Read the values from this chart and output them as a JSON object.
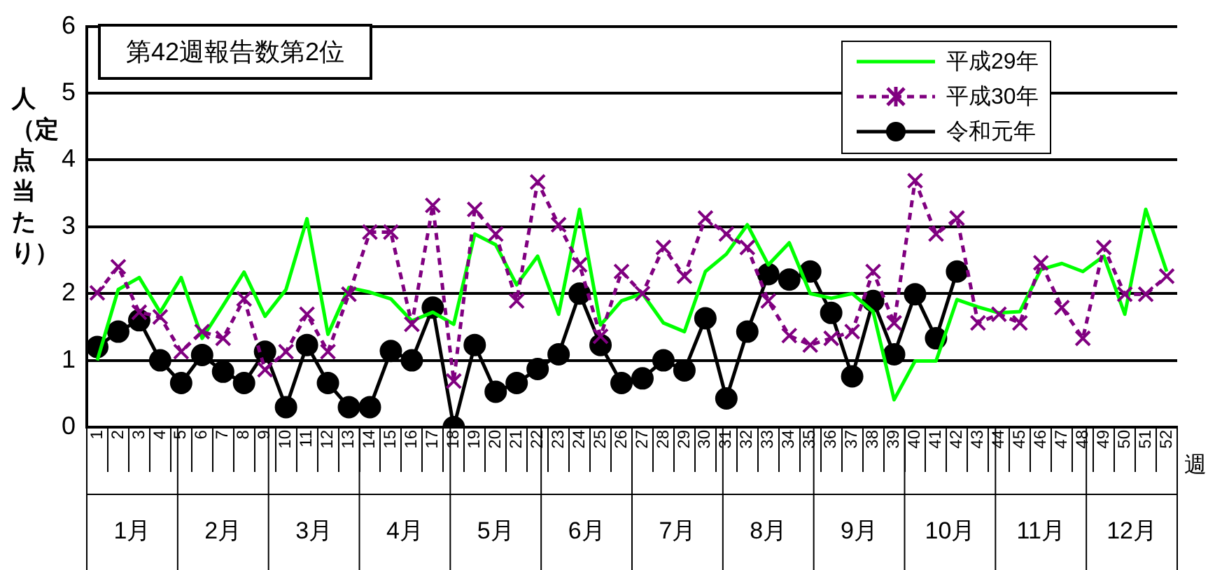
{
  "chart_data": {
    "type": "line",
    "ylabel": "人（定点当たり）",
    "xlabel": "週",
    "categories": [
      "1",
      "2",
      "3",
      "4",
      "5",
      "6",
      "7",
      "8",
      "9",
      "10",
      "11",
      "12",
      "13",
      "14",
      "15",
      "16",
      "17",
      "18",
      "19",
      "20",
      "21",
      "22",
      "23",
      "24",
      "25",
      "26",
      "27",
      "28",
      "29",
      "30",
      "31",
      "32",
      "33",
      "34",
      "35",
      "36",
      "37",
      "38",
      "39",
      "40",
      "41",
      "42",
      "43",
      "44",
      "45",
      "46",
      "47",
      "48",
      "49",
      "50",
      "51",
      "52"
    ],
    "series": [
      {
        "name": "平成29年",
        "color": "#00ff00",
        "marker": "none",
        "line_style": "solid",
        "values": [
          1.0,
          2.06,
          2.24,
          1.72,
          2.24,
          1.33,
          1.82,
          2.32,
          1.66,
          2.06,
          3.12,
          1.39,
          2.09,
          2.02,
          1.92,
          1.59,
          1.72,
          1.54,
          2.89,
          2.73,
          2.13,
          2.56,
          1.69,
          3.26,
          1.53,
          1.89,
          2.0,
          1.56,
          1.43,
          2.33,
          2.59,
          3.03,
          2.43,
          2.76,
          2.0,
          1.93,
          2.0,
          1.73,
          0.41,
          0.99,
          0.99,
          1.91,
          1.8,
          1.71,
          1.73,
          2.36,
          2.45,
          2.33,
          2.56,
          1.69,
          3.26,
          2.33
        ]
      },
      {
        "name": "平成30年",
        "color": "#800080",
        "marker": "cross",
        "line_style": "dashed",
        "values": [
          2.01,
          2.4,
          1.72,
          1.65,
          1.13,
          1.43,
          1.33,
          1.92,
          0.86,
          1.13,
          1.69,
          1.13,
          1.99,
          2.92,
          2.92,
          1.54,
          3.32,
          0.69,
          3.26,
          2.89,
          1.89,
          3.67,
          3.03,
          2.43,
          1.36,
          2.33,
          2.0,
          2.69,
          2.26,
          3.13,
          2.89,
          2.69,
          1.89,
          1.37,
          1.23,
          1.33,
          1.43,
          2.33,
          1.56,
          3.69,
          2.89,
          3.13,
          1.56,
          1.69,
          1.56,
          2.46,
          1.79,
          1.33,
          2.69,
          1.99,
          1.99,
          2.26
        ]
      },
      {
        "name": "令和元年",
        "color": "#000000",
        "marker": "circle",
        "line_style": "solid",
        "values": [
          1.2,
          1.43,
          1.6,
          1.0,
          0.66,
          1.08,
          0.83,
          0.66,
          1.13,
          0.3,
          1.23,
          0.66,
          0.3,
          0.3,
          1.14,
          1.0,
          1.79,
          0.0,
          1.23,
          0.53,
          0.66,
          0.87,
          1.09,
          2.0,
          1.23,
          0.66,
          0.73,
          1.0,
          0.85,
          1.63,
          0.43,
          1.43,
          2.29,
          2.21,
          2.33,
          1.71,
          0.76,
          1.89,
          1.09,
          1.99,
          1.33,
          2.33,
          null,
          null,
          null,
          null,
          null,
          null,
          null,
          null,
          null,
          null
        ]
      }
    ],
    "ylim": [
      0,
      6
    ],
    "yticks": [
      0,
      1,
      2,
      3,
      4,
      5,
      6
    ],
    "grid": "y",
    "legend": "top right",
    "annotations": [
      "第42週報告数第2位",
      "1月",
      "2月",
      "3月",
      "4月",
      "5月",
      "6月",
      "7月",
      "8月",
      "9月",
      "10月",
      "11月",
      "12月"
    ]
  }
}
